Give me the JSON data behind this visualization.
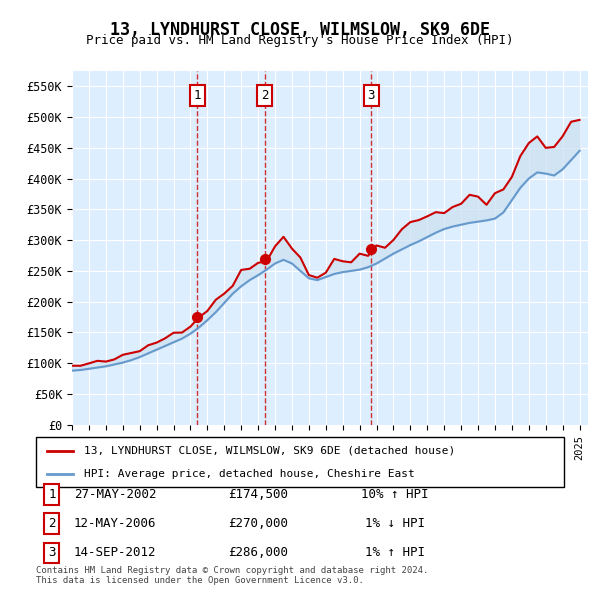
{
  "title": "13, LYNDHURST CLOSE, WILMSLOW, SK9 6DE",
  "subtitle": "Price paid vs. HM Land Registry's House Price Index (HPI)",
  "legend_line1": "13, LYNDHURST CLOSE, WILMSLOW, SK9 6DE (detached house)",
  "legend_line2": "HPI: Average price, detached house, Cheshire East",
  "footer1": "Contains HM Land Registry data © Crown copyright and database right 2024.",
  "footer2": "This data is licensed under the Open Government Licence v3.0.",
  "sales": [
    {
      "num": 1,
      "date": "27-MAY-2002",
      "price": 174500,
      "year": 2002.4,
      "pct": "10%",
      "dir": "↑"
    },
    {
      "num": 2,
      "date": "12-MAY-2006",
      "price": 270000,
      "year": 2006.4,
      "pct": "1%",
      "dir": "↓"
    },
    {
      "num": 3,
      "date": "14-SEP-2012",
      "price": 286000,
      "year": 2012.7,
      "pct": "1%",
      "dir": "↑"
    }
  ],
  "red_color": "#cc0000",
  "blue_color": "#6699cc",
  "fill_color": "#cce0f0",
  "background_color": "#ddeeff",
  "ylim": [
    0,
    575000
  ],
  "xlim_start": 1995,
  "xlim_end": 2025.5
}
